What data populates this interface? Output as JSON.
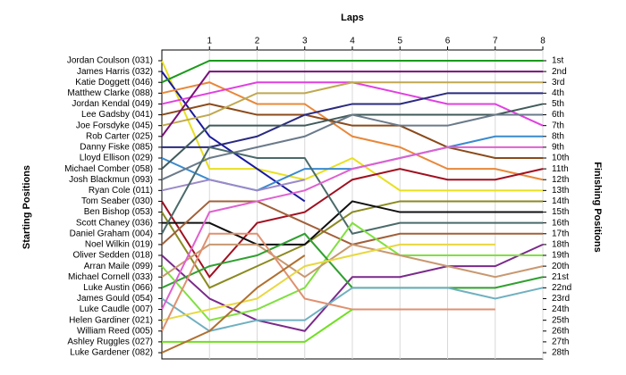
{
  "chart_data": {
    "type": "bump",
    "x_label": "Laps",
    "y_label": "Starting Positions",
    "y2_label": "Finishing Positions",
    "x": [
      0,
      1,
      2,
      3,
      4,
      5,
      6,
      7,
      8
    ],
    "xlim": [
      0,
      8
    ],
    "xticks": [
      1,
      2,
      3,
      4,
      5,
      6,
      7,
      8
    ],
    "ylim": [
      1,
      28
    ],
    "inverted": true,
    "grid": true,
    "finishing_labels": [
      "1st",
      "2nd",
      "3rd",
      "4th",
      "5th",
      "6th",
      "7th",
      "8th",
      "9th",
      "10th",
      "11th",
      "12th",
      "13th",
      "14th",
      "15th",
      "16th",
      "17th",
      "18th",
      "19th",
      "20th",
      "21st",
      "22nd",
      "23rd",
      "24th",
      "25th",
      "26th",
      "27th",
      "28th"
    ],
    "series": [
      {
        "name": "Jordan Coulson (031)",
        "color": "#e8e020",
        "values": [
          1,
          11,
          11,
          12,
          10,
          13,
          13,
          13,
          13
        ]
      },
      {
        "name": "James Harris (032)",
        "color": "#1a1a9e",
        "values": [
          2,
          8,
          11,
          14,
          null,
          null,
          null,
          null,
          null
        ]
      },
      {
        "name": "Katie Doggett (046)",
        "color": "#1a9a1a",
        "values": [
          3,
          1,
          1,
          1,
          1,
          1,
          1,
          1,
          1
        ]
      },
      {
        "name": "Matthew Clarke (088)",
        "color": "#e8883a",
        "values": [
          4,
          3,
          5,
          5,
          8,
          9,
          11,
          11,
          12
        ]
      },
      {
        "name": "Jordan Kendal (049)",
        "color": "#e040e0",
        "values": [
          5,
          4,
          3,
          3,
          3,
          4,
          5,
          5,
          7
        ]
      },
      {
        "name": "Lee Gadsby (041)",
        "color": "#8b4a1a",
        "values": [
          6,
          5,
          6,
          6,
          7,
          7,
          9,
          10,
          10
        ]
      },
      {
        "name": "Joe Forsdyke (045)",
        "color": "#c0a850",
        "values": [
          7,
          6,
          4,
          4,
          3,
          3,
          3,
          3,
          3
        ]
      },
      {
        "name": "Rob Carter (025)",
        "color": "#7a107a",
        "values": [
          8,
          2,
          2,
          2,
          2,
          2,
          2,
          2,
          2
        ]
      },
      {
        "name": "Danny Fiske (085)",
        "color": "#2a2a80",
        "values": [
          9,
          9,
          8,
          6,
          5,
          5,
          4,
          4,
          4
        ]
      },
      {
        "name": "Lloyd Ellison (029)",
        "color": "#3a8ad0",
        "values": [
          10,
          12,
          13,
          11,
          11,
          10,
          9,
          8,
          8
        ]
      },
      {
        "name": "Michael Comber (058)",
        "color": "#405a5a",
        "values": [
          11,
          7,
          7,
          7,
          6,
          6,
          6,
          6,
          5
        ]
      },
      {
        "name": "Josh Blackmun (093)",
        "color": "#6a7a8a",
        "values": [
          12,
          10,
          9,
          8,
          6,
          7,
          7,
          6,
          6
        ]
      },
      {
        "name": "Ryan Cole (011)",
        "color": "#9a8ac8",
        "values": [
          13,
          12,
          13,
          12,
          null,
          null,
          null,
          null,
          null
        ]
      },
      {
        "name": "Tom Seaber (030)",
        "color": "#a01020",
        "values": [
          14,
          21,
          16,
          15,
          12,
          11,
          12,
          12,
          11
        ]
      },
      {
        "name": "Ben Bishop (053)",
        "color": "#8a8a20",
        "values": [
          15,
          22,
          20,
          18,
          15,
          14,
          14,
          14,
          14
        ]
      },
      {
        "name": "Scott Chaney (036)",
        "color": "#101010",
        "values": [
          16,
          16,
          18,
          18,
          14,
          15,
          15,
          15,
          15
        ]
      },
      {
        "name": "Daniel Graham (004)",
        "color": "#4a6a6a",
        "values": [
          17,
          9,
          10,
          10,
          17,
          16,
          16,
          16,
          16
        ]
      },
      {
        "name": "Noel Wilkin (019)",
        "color": "#a0603a",
        "values": [
          18,
          14,
          14,
          16,
          18,
          17,
          17,
          17,
          17
        ]
      },
      {
        "name": "Oliver Sedden (018)",
        "color": "#7a2a8a",
        "values": [
          19,
          23,
          25,
          26,
          21,
          21,
          20,
          20,
          18
        ]
      },
      {
        "name": "Arran Maile (099)",
        "color": "#80e040",
        "values": [
          20,
          25,
          24,
          22,
          16,
          19,
          19,
          19,
          19
        ]
      },
      {
        "name": "Michael Cornell (033)",
        "color": "#c89870",
        "values": [
          21,
          18,
          18,
          21,
          18,
          19,
          20,
          21,
          20
        ]
      },
      {
        "name": "Luke Austin (066)",
        "color": "#30a030",
        "values": [
          22,
          20,
          19,
          17,
          22,
          22,
          22,
          22,
          21
        ]
      },
      {
        "name": "James Gould (054)",
        "color": "#70b0c0",
        "values": [
          23,
          26,
          25,
          25,
          22,
          22,
          22,
          23,
          22
        ]
      },
      {
        "name": "Luke Caudle (007)",
        "color": "#e060d0",
        "values": [
          24,
          15,
          14,
          13,
          11,
          10,
          9,
          9,
          9
        ]
      },
      {
        "name": "Helen Gardiner (021)",
        "color": "#e8d840",
        "values": [
          25,
          24,
          23,
          20,
          19,
          18,
          18,
          18,
          null
        ]
      },
      {
        "name": "William Reed (005)",
        "color": "#e09070",
        "values": [
          26,
          17,
          17,
          23,
          24,
          24,
          24,
          24,
          null
        ]
      },
      {
        "name": "Ashley Ruggles (027)",
        "color": "#70e020",
        "values": [
          27,
          27,
          27,
          27,
          24,
          null,
          null,
          null,
          null
        ]
      },
      {
        "name": "Luke Gardener (082)",
        "color": "#b07030",
        "values": [
          28,
          26,
          22,
          19,
          null,
          null,
          null,
          null,
          null
        ]
      }
    ]
  }
}
